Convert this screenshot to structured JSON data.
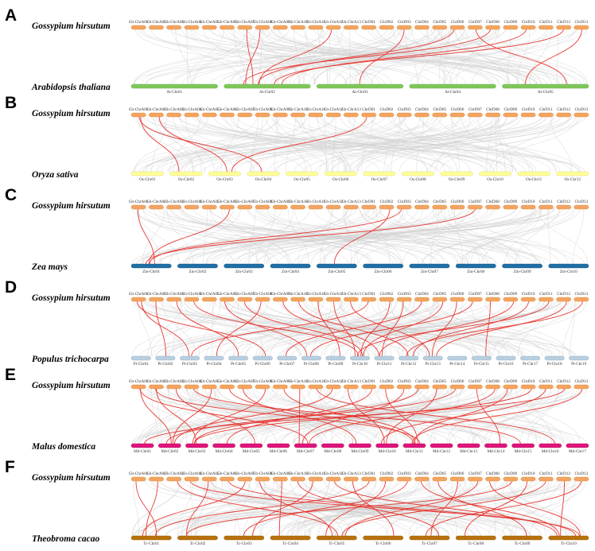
{
  "colors": {
    "gh": "#f4a460",
    "gh_stroke": "#d98a3d",
    "grey_link": "#cfcfcf",
    "red_link": "#e8302a"
  },
  "gh_chromosomes": [
    "Gh-ChrA01",
    "Gh-ChrA02",
    "Gh-ChrA03",
    "Gh-ChrA04",
    "Gh-ChrA05",
    "Gh-ChrA06",
    "Gh-ChrA07",
    "Gh-ChrA08",
    "Gh-ChrA09",
    "Gh-ChrA10",
    "Gh-ChrA11",
    "Gh-ChrA12",
    "Gh-ChrA13",
    "ChrD01",
    "ChrD02",
    "ChrD03",
    "ChrD04",
    "ChrD05",
    "ChrD06",
    "ChrD07",
    "ChrD08",
    "ChrD09",
    "ChrD10",
    "ChrD11",
    "ChrD12",
    "ChrD13"
  ],
  "panels": [
    {
      "letter": "A",
      "top_species": "Gossypium hirsutum",
      "bottom_species": "Arabidopsis thaliana",
      "bottom_color": "#7fc75a",
      "bottom_stroke": "#5aa23a",
      "bottom_chromosomes": [
        "At-Chr01",
        "At-Chr02",
        "At-Chr03",
        "At-Chr04",
        "At-Chr05"
      ],
      "red_links": [
        [
          6,
          1
        ],
        [
          7,
          1
        ],
        [
          11,
          1
        ],
        [
          15,
          2
        ],
        [
          18,
          1
        ],
        [
          19,
          4
        ],
        [
          20,
          1
        ],
        [
          22,
          1
        ],
        [
          24,
          1
        ],
        [
          25,
          4
        ]
      ]
    },
    {
      "letter": "B",
      "top_species": "Gossypium hirsutum",
      "bottom_species": "Oryza sativa",
      "bottom_color": "#ffff99",
      "bottom_stroke": "#d4d46a",
      "bottom_chromosomes": [
        "Os-Chr01",
        "Os-Chr02",
        "Os-Chr03",
        "Os-Chr04",
        "Os-Chr05",
        "Os-Chr06",
        "Os-Chr07",
        "Os-Chr08",
        "Os-Chr09",
        "Os-Chr10",
        "Os-Chr11",
        "Os-Chr12"
      ],
      "red_links": [
        [
          0,
          1
        ],
        [
          0,
          3
        ],
        [
          1,
          2
        ],
        [
          13,
          2
        ]
      ]
    },
    {
      "letter": "C",
      "top_species": "Gossypium hirsutum",
      "bottom_species": "Zea mays",
      "bottom_color": "#1f6fa6",
      "bottom_stroke": "#14507a",
      "bottom_chromosomes": [
        "Zm-Chr01",
        "Zm-Chr02",
        "Zm-Chr03",
        "Zm-Chr04",
        "Zm-Chr05",
        "Zm-Chr06",
        "Zm-Chr07",
        "Zm-Chr08",
        "Zm-Chr09",
        "Zm-Chr10"
      ],
      "red_links": [
        [
          0,
          0
        ],
        [
          5,
          0
        ],
        [
          14,
          4
        ],
        [
          19,
          0
        ],
        [
          15,
          0
        ]
      ]
    },
    {
      "letter": "D",
      "top_species": "Gossypium hirsutum",
      "bottom_species": "Populus trichocarpa",
      "bottom_color": "#b8cfe0",
      "bottom_stroke": "#8aa8c0",
      "bottom_chromosomes": [
        "Pt-Chr01",
        "Pt-Chr02",
        "Pt-Chr03",
        "Pt-Chr04",
        "Pt-Chr05",
        "Pt-Chr06",
        "Pt-Chr07",
        "Pt-Chr08",
        "Pt-Chr09",
        "Pt-Chr10",
        "Pt-Chr11",
        "Pt-Chr12",
        "Pt-Chr13",
        "Pt-Chr14",
        "Pt-Chr15",
        "Pt-Chr16",
        "Pt-Chr17",
        "Pt-Chr18",
        "Pt-Chr19"
      ],
      "red_links": [
        [
          0,
          2
        ],
        [
          0,
          5
        ],
        [
          1,
          1
        ],
        [
          2,
          4
        ],
        [
          3,
          9
        ],
        [
          5,
          7
        ],
        [
          6,
          9
        ],
        [
          7,
          3
        ],
        [
          8,
          10
        ],
        [
          9,
          11
        ],
        [
          10,
          8
        ],
        [
          11,
          9
        ],
        [
          12,
          12
        ],
        [
          13,
          2
        ],
        [
          14,
          9
        ],
        [
          15,
          10
        ],
        [
          16,
          6
        ],
        [
          17,
          9
        ],
        [
          18,
          12
        ],
        [
          19,
          7
        ],
        [
          20,
          14
        ],
        [
          21,
          10
        ],
        [
          22,
          11
        ],
        [
          23,
          9
        ],
        [
          24,
          12
        ],
        [
          25,
          11
        ]
      ]
    },
    {
      "letter": "E",
      "top_species": "Gossypium hirsutum",
      "bottom_species": "Malus domestica",
      "bottom_color": "#e0147a",
      "bottom_stroke": "#a80e5a",
      "bottom_chromosomes": [
        "Md-Chr01",
        "Md-Chr02",
        "Md-Chr03",
        "Md-Chr04",
        "Md-Chr05",
        "Md-Chr06",
        "Md-Chr07",
        "Md-Chr08",
        "Md-Chr09",
        "Md-Chr10",
        "Md-Chr11",
        "Md-Chr12",
        "Md-Chr13",
        "Md-Chr14",
        "Md-Chr15",
        "Md-Chr16",
        "Md-Chr17"
      ],
      "red_links": [
        [
          0,
          1
        ],
        [
          0,
          6
        ],
        [
          1,
          2
        ],
        [
          1,
          10
        ],
        [
          2,
          4
        ],
        [
          3,
          14
        ],
        [
          4,
          1
        ],
        [
          5,
          10
        ],
        [
          6,
          8
        ],
        [
          7,
          2
        ],
        [
          8,
          10
        ],
        [
          9,
          6
        ],
        [
          10,
          15
        ],
        [
          11,
          1
        ],
        [
          12,
          9
        ],
        [
          13,
          3
        ],
        [
          14,
          10
        ],
        [
          15,
          6
        ],
        [
          16,
          2
        ],
        [
          17,
          9
        ],
        [
          18,
          1
        ],
        [
          19,
          13
        ],
        [
          20,
          6
        ],
        [
          21,
          10
        ],
        [
          22,
          2
        ],
        [
          23,
          9
        ],
        [
          24,
          0
        ],
        [
          25,
          10
        ]
      ]
    },
    {
      "letter": "F",
      "top_species": "Gossypium hirsutum",
      "bottom_species": "Theobroma cacao",
      "bottom_color": "#b8720a",
      "bottom_stroke": "#8a5406",
      "bottom_chromosomes": [
        "Tc-Chr01",
        "Tc-Chr02",
        "Tc-Chr03",
        "Tc-Chr04",
        "Tc-Chr05",
        "Tc-Chr06",
        "Tc-Chr07",
        "Tc-Chr08",
        "Tc-Chr09",
        "Tc-Chr10"
      ],
      "red_links": [
        [
          0,
          0
        ],
        [
          1,
          0
        ],
        [
          2,
          4
        ],
        [
          3,
          9
        ],
        [
          4,
          1
        ],
        [
          5,
          9
        ],
        [
          6,
          0
        ],
        [
          7,
          4
        ],
        [
          8,
          3
        ],
        [
          9,
          6
        ],
        [
          10,
          2
        ],
        [
          11,
          9
        ],
        [
          12,
          5
        ],
        [
          13,
          0
        ],
        [
          14,
          4
        ],
        [
          15,
          2
        ],
        [
          16,
          9
        ],
        [
          17,
          8
        ],
        [
          18,
          6
        ],
        [
          19,
          4
        ],
        [
          20,
          9
        ],
        [
          21,
          1
        ],
        [
          22,
          7
        ],
        [
          23,
          4
        ],
        [
          24,
          9
        ],
        [
          25,
          6
        ]
      ]
    }
  ]
}
